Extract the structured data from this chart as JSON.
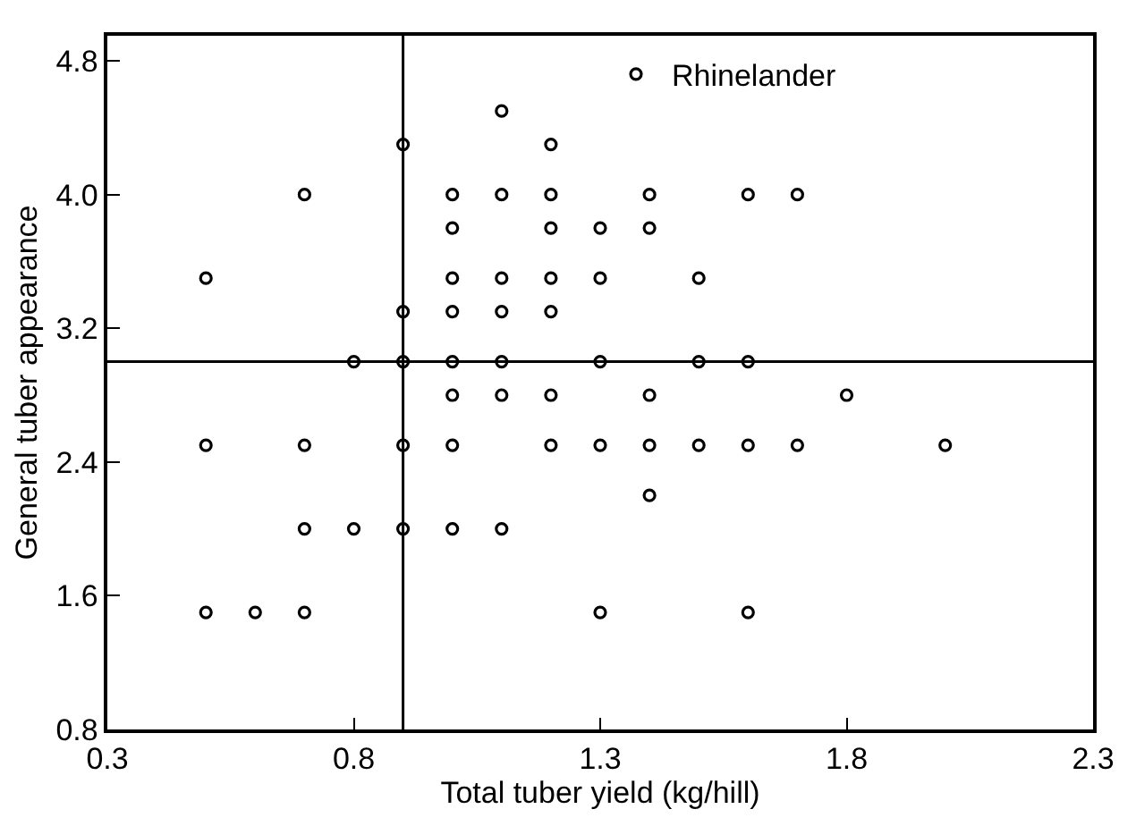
{
  "chart_data": {
    "type": "scatter",
    "xlabel": "Total tuber yield (kg/hill)",
    "ylabel": "General tuber appearance",
    "xlim": [
      0.3,
      2.3
    ],
    "xticks": [
      0.3,
      0.8,
      1.3,
      1.8,
      2.3
    ],
    "ylim": [
      0.8,
      4.95
    ],
    "yticks": [
      0.8,
      1.6,
      2.4,
      3.2,
      {
        "value": 4.0,
        "label": "4.0"
      },
      4.8
    ],
    "legend": "top",
    "marker": "circle",
    "series": [
      {
        "name": "Rhinelander",
        "color": "#000000",
        "x": [
          1.1,
          0.9,
          1.2,
          0.7,
          1.0,
          1.1,
          1.2,
          1.4,
          1.6,
          1.7,
          1.0,
          1.2,
          1.3,
          1.4,
          0.5,
          1.0,
          1.1,
          1.2,
          1.3,
          1.5,
          0.9,
          1.0,
          1.1,
          1.2,
          0.8,
          0.9,
          1.0,
          1.1,
          1.3,
          1.5,
          1.6,
          1.0,
          1.1,
          1.2,
          1.4,
          1.8,
          0.5,
          0.7,
          0.9,
          1.0,
          1.2,
          1.3,
          1.4,
          1.5,
          1.6,
          1.7,
          2.0,
          1.4,
          0.7,
          0.8,
          0.9,
          1.0,
          1.1,
          0.5,
          0.6,
          0.7,
          1.3,
          1.6
        ],
        "values": [
          4.5,
          4.3,
          4.3,
          4.0,
          4.0,
          4.0,
          4.0,
          4.0,
          4.0,
          4.0,
          3.8,
          3.8,
          3.8,
          3.8,
          3.5,
          3.5,
          3.5,
          3.5,
          3.5,
          3.5,
          3.3,
          3.3,
          3.3,
          3.3,
          3.0,
          3.0,
          3.0,
          3.0,
          3.0,
          3.0,
          3.0,
          2.8,
          2.8,
          2.8,
          2.8,
          2.8,
          2.5,
          2.5,
          2.5,
          2.5,
          2.5,
          2.5,
          2.5,
          2.5,
          2.5,
          2.5,
          2.5,
          2.2,
          2.0,
          2.0,
          2.0,
          2.0,
          2.0,
          1.5,
          1.5,
          1.5,
          1.5,
          1.5
        ]
      }
    ],
    "ref_lines": [
      {
        "axis": "x",
        "value": 0.9,
        "color": "#000000"
      },
      {
        "axis": "y",
        "value": 3.0,
        "color": "#000000"
      }
    ]
  }
}
